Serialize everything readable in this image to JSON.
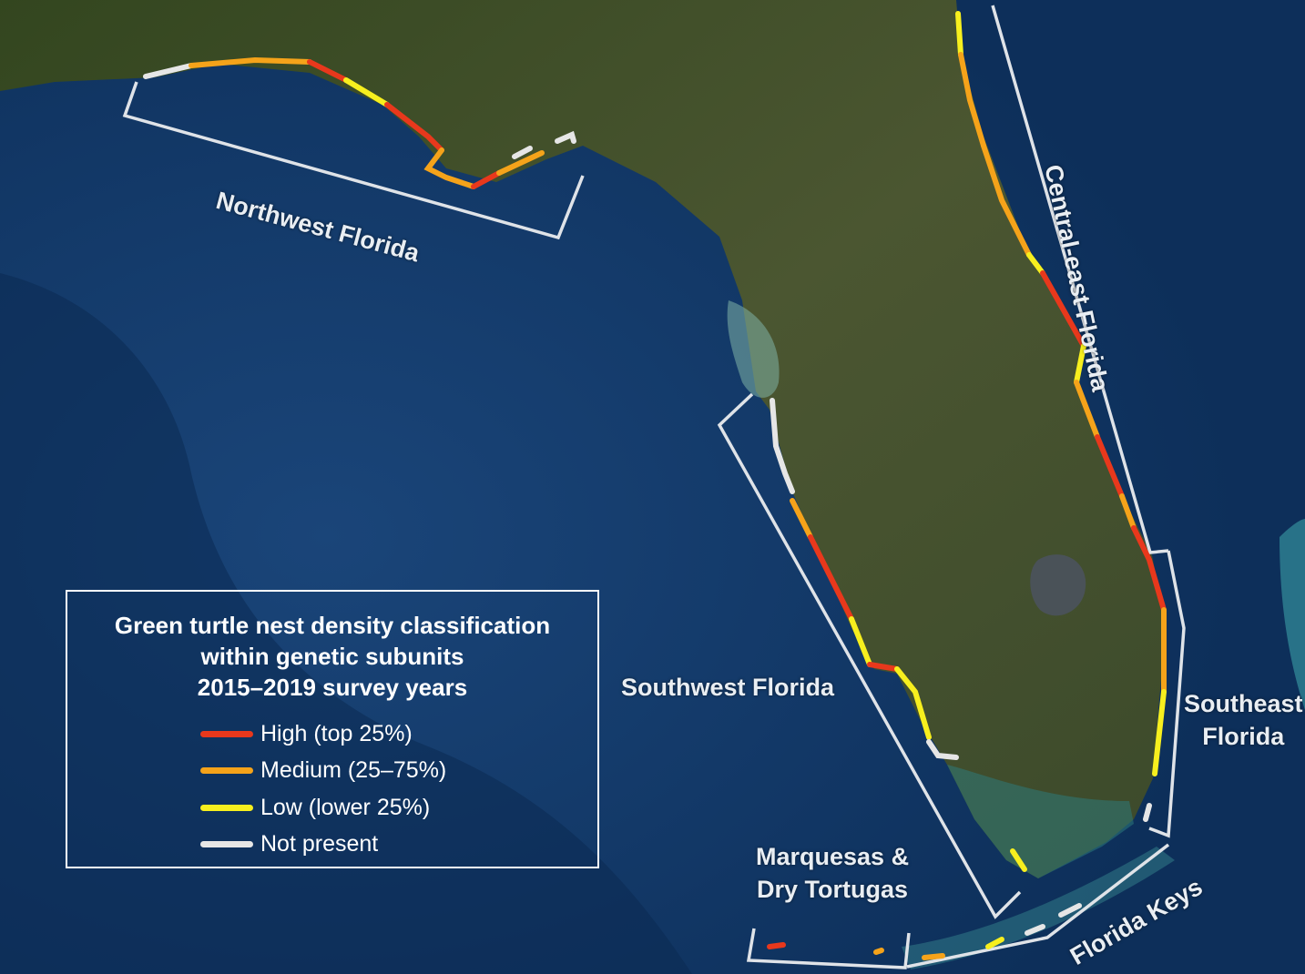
{
  "map": {
    "colors": {
      "ocean": "#0f3563",
      "land": "#3a4a2a",
      "bracket": "#dfe3e8",
      "high": "#e8381c",
      "medium": "#f5a31a",
      "low": "#f7ef1e",
      "not_present": "#e6e6e6"
    },
    "regions": [
      {
        "id": "northwest",
        "label": "Northwest Florida"
      },
      {
        "id": "central-east",
        "label": "Central-east Florida"
      },
      {
        "id": "southwest",
        "label": "Southwest Florida"
      },
      {
        "id": "southeast",
        "label_lines": [
          "Southeast",
          "Florida"
        ]
      },
      {
        "id": "marquesas",
        "label_lines": [
          "Marquesas &",
          "Dry Tortugas"
        ]
      },
      {
        "id": "keys",
        "label": "Florida Keys"
      }
    ]
  },
  "legend": {
    "title_lines": [
      "Green turtle nest density classification",
      "within genetic subunits",
      "2015–2019 survey years"
    ],
    "items": [
      {
        "key": "high",
        "label": "High (top 25%)",
        "color": "#e8381c"
      },
      {
        "key": "medium",
        "label": "Medium (25–75%)",
        "color": "#f5a31a"
      },
      {
        "key": "low",
        "label": "Low (lower 25%)",
        "color": "#f7ef1e"
      },
      {
        "key": "not_present",
        "label": "Not present",
        "color": "#e6e6e6"
      }
    ]
  }
}
